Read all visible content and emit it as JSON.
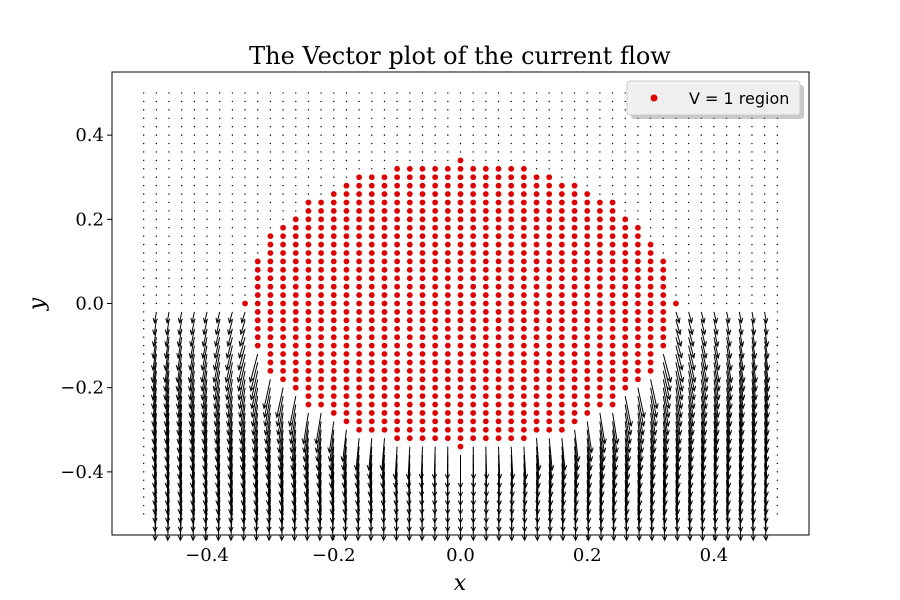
{
  "chart_data": {
    "type": "quiver",
    "title": "The Vector plot of the current flow",
    "xlabel": "x",
    "ylabel": "y",
    "xlim": [
      -0.55,
      0.55
    ],
    "ylim": [
      -0.55,
      0.55
    ],
    "xticks": [
      -0.4,
      -0.2,
      0.0,
      0.2,
      0.4
    ],
    "xtick_labels": [
      "−0.4",
      "−0.2",
      "0.0",
      "0.2",
      "0.4"
    ],
    "yticks": [
      -0.4,
      -0.2,
      0.0,
      0.2,
      0.4
    ],
    "ytick_labels": [
      "−0.4",
      "−0.2",
      "0.0",
      "0.2",
      "0.4"
    ],
    "grid": false,
    "legend": {
      "position": "top-right",
      "entries": [
        {
          "label": "V = 1 region",
          "color": "#dd0000",
          "marker": "circle"
        }
      ]
    },
    "quiver_grid": {
      "x_range": [
        -0.5,
        0.5
      ],
      "y_range": [
        -0.5,
        0.5
      ],
      "step": 0.02
    },
    "region": {
      "label": "V = 1 region",
      "shape": "circle",
      "center": [
        0.0,
        0.0
      ],
      "radius": 0.34,
      "color": "#dd0000"
    },
    "arrows": {
      "color": "#000000",
      "predominant_direction": "downward",
      "strong_region": "below and around V = 1 region, y < 0"
    }
  }
}
